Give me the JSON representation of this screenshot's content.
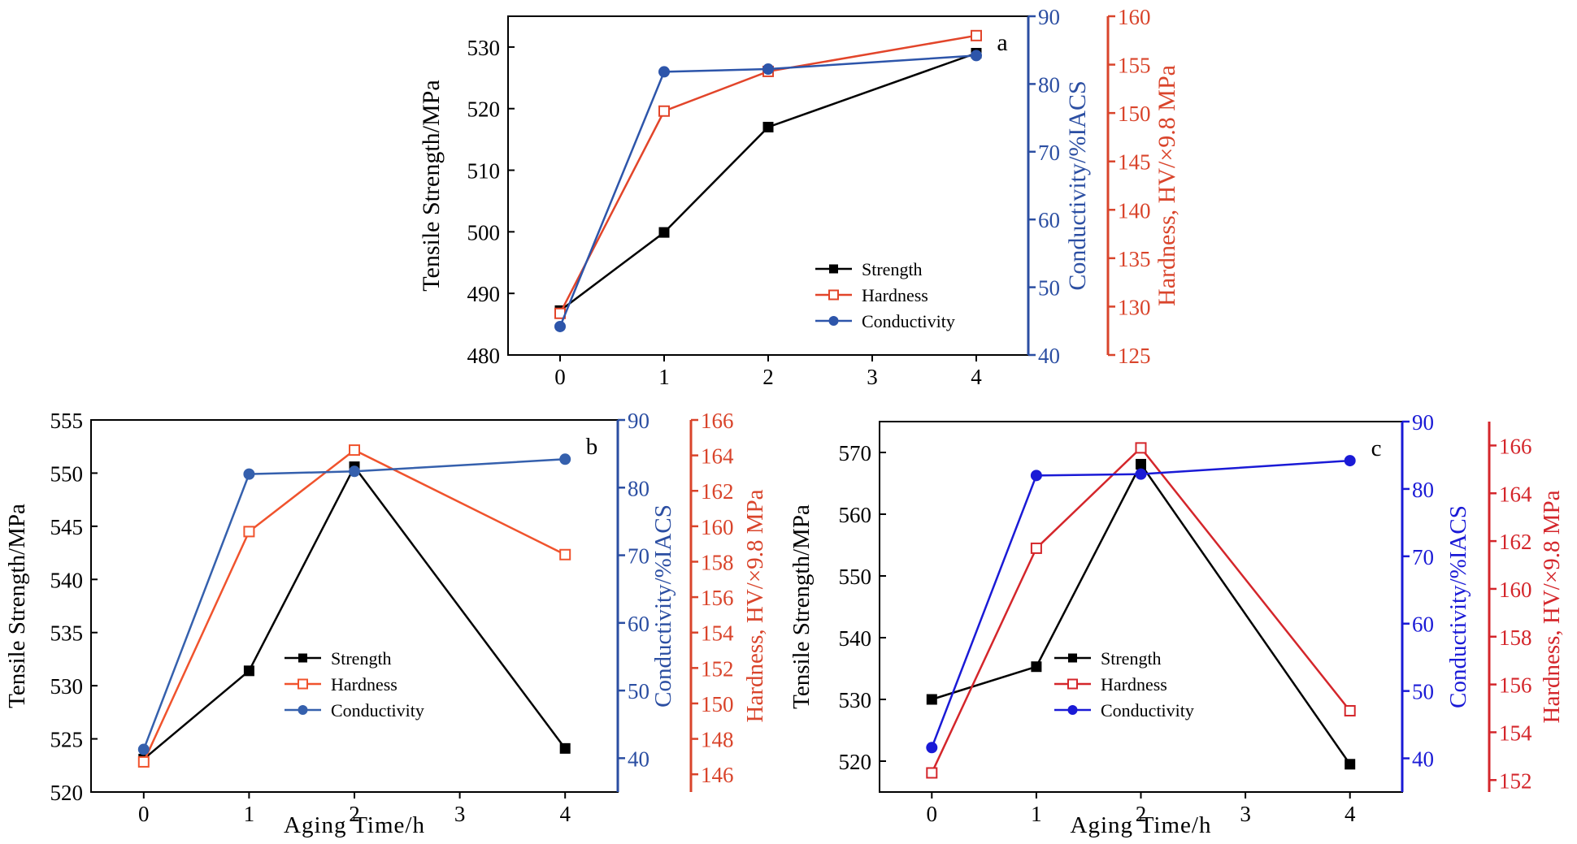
{
  "chart_data": [
    {
      "type": "line",
      "panel_label": "a",
      "xlabel": "",
      "x_ticks": [
        "0",
        "1",
        "2",
        "3",
        "4"
      ],
      "xlim": [
        -0.5,
        4.5
      ],
      "legend": {
        "placement": "bottom-right"
      },
      "axes": {
        "left": {
          "label": "Tensile Strength/MPa",
          "ylim": [
            480,
            535
          ],
          "ticks": [
            "480",
            "490",
            "500",
            "510",
            "520",
            "530"
          ],
          "tick_values": [
            480,
            490,
            500,
            510,
            520,
            530
          ],
          "color": "#000000"
        },
        "right1": {
          "label": "Conductivity/%IACS",
          "ylim": [
            40,
            90
          ],
          "ticks": [
            "40",
            "50",
            "60",
            "70",
            "80",
            "90"
          ],
          "tick_values": [
            40,
            50,
            60,
            70,
            80,
            90
          ],
          "color": "#2b4ea2"
        },
        "right2": {
          "label": "Hardness, HV/×9.8 MPa",
          "ylim": [
            125,
            160
          ],
          "ticks": [
            "125",
            "130",
            "135",
            "140",
            "145",
            "150",
            "155",
            "160"
          ],
          "tick_values": [
            125,
            130,
            135,
            140,
            145,
            150,
            155,
            160
          ],
          "color": "#d9442b"
        }
      },
      "series": [
        {
          "name": "Strength",
          "axis": "left",
          "marker": "filled-square",
          "color": "#000000",
          "x": [
            0,
            1,
            2,
            4
          ],
          "y": [
            487.2,
            499.9,
            517.0,
            529.0
          ]
        },
        {
          "name": "Hardness",
          "axis": "right2",
          "marker": "open-square",
          "color": "#e2452a",
          "x": [
            0,
            1,
            2,
            4
          ],
          "y": [
            129.3,
            150.2,
            154.3,
            158.0
          ]
        },
        {
          "name": "Conductivity",
          "axis": "right1",
          "marker": "filled-circle",
          "color": "#2d55aa",
          "x": [
            0,
            1,
            2,
            4
          ],
          "y": [
            44.2,
            81.8,
            82.2,
            84.2
          ]
        }
      ]
    },
    {
      "type": "line",
      "panel_label": "b",
      "xlabel": "Aging Time/h",
      "x_ticks": [
        "0",
        "1",
        "2",
        "3",
        "4"
      ],
      "xlim": [
        -0.5,
        4.5
      ],
      "legend": {
        "placement": "bottom-center"
      },
      "axes": {
        "left": {
          "label": "Tensile Strength/MPa",
          "ylim": [
            520,
            555
          ],
          "ticks": [
            "520",
            "525",
            "530",
            "535",
            "540",
            "545",
            "550",
            "555"
          ],
          "tick_values": [
            520,
            525,
            530,
            535,
            540,
            545,
            550,
            555
          ],
          "color": "#000000"
        },
        "right1": {
          "label": "Conductivity/%IACS",
          "ylim": [
            35,
            90
          ],
          "ticks": [
            "40",
            "50",
            "60",
            "70",
            "80",
            "90"
          ],
          "tick_values": [
            40,
            50,
            60,
            70,
            80,
            90
          ],
          "color": "#2b4ea2"
        },
        "right2": {
          "label": "Hardness, HV/×9.8 MPa",
          "ylim": [
            145,
            166
          ],
          "ticks": [
            "146",
            "148",
            "150",
            "152",
            "154",
            "156",
            "158",
            "160",
            "162",
            "164",
            "166"
          ],
          "tick_values": [
            146,
            148,
            150,
            152,
            154,
            156,
            158,
            160,
            162,
            164,
            166
          ],
          "color": "#d9442b"
        }
      },
      "series": [
        {
          "name": "Strength",
          "axis": "left",
          "marker": "filled-square",
          "color": "#000000",
          "x": [
            0,
            1,
            2,
            4
          ],
          "y": [
            523.1,
            531.4,
            550.6,
            524.1
          ]
        },
        {
          "name": "Hardness",
          "axis": "right2",
          "marker": "open-square",
          "color": "#f0532d",
          "x": [
            0,
            1,
            2,
            4
          ],
          "y": [
            146.7,
            159.7,
            164.3,
            158.4
          ]
        },
        {
          "name": "Conductivity",
          "axis": "right1",
          "marker": "filled-circle",
          "color": "#3560ad",
          "x": [
            0,
            1,
            2,
            4
          ],
          "y": [
            41.3,
            82.0,
            82.4,
            84.2
          ]
        }
      ]
    },
    {
      "type": "line",
      "panel_label": "c",
      "xlabel": "Aging Time/h",
      "x_ticks": [
        "0",
        "1",
        "2",
        "3",
        "4"
      ],
      "xlim": [
        -0.5,
        4.5
      ],
      "legend": {
        "placement": "bottom-center"
      },
      "axes": {
        "left": {
          "label": "Tensile Strength/MPa",
          "ylim": [
            515,
            575
          ],
          "ticks": [
            "520",
            "530",
            "540",
            "550",
            "560",
            "570"
          ],
          "tick_values": [
            520,
            530,
            540,
            550,
            560,
            570
          ],
          "color": "#000000"
        },
        "right1": {
          "label": "Conductivity/%IACS",
          "ylim": [
            35,
            90
          ],
          "ticks": [
            "40",
            "50",
            "60",
            "70",
            "80",
            "90"
          ],
          "tick_values": [
            40,
            50,
            60,
            70,
            80,
            90
          ],
          "color": "#1a1ad6"
        },
        "right2": {
          "label": "Hardness, HV/×9.8 MPa",
          "ylim": [
            151.5,
            167
          ],
          "ticks": [
            "152",
            "154",
            "156",
            "158",
            "160",
            "162",
            "164",
            "166"
          ],
          "tick_values": [
            152,
            154,
            156,
            158,
            160,
            162,
            164,
            166
          ],
          "color": "#d4262b"
        }
      },
      "series": [
        {
          "name": "Strength",
          "axis": "left",
          "marker": "filled-square",
          "color": "#000000",
          "x": [
            0,
            1,
            2,
            4
          ],
          "y": [
            530.0,
            535.3,
            568.1,
            519.5
          ]
        },
        {
          "name": "Hardness",
          "axis": "right2",
          "marker": "open-square",
          "color": "#d4262b",
          "x": [
            0,
            1,
            2,
            4
          ],
          "y": [
            152.3,
            161.7,
            165.9,
            154.9
          ]
        },
        {
          "name": "Conductivity",
          "axis": "right1",
          "marker": "filled-circle",
          "color": "#1a1ad6",
          "x": [
            0,
            1,
            2,
            4
          ],
          "y": [
            41.6,
            82.0,
            82.2,
            84.2
          ]
        }
      ]
    }
  ]
}
